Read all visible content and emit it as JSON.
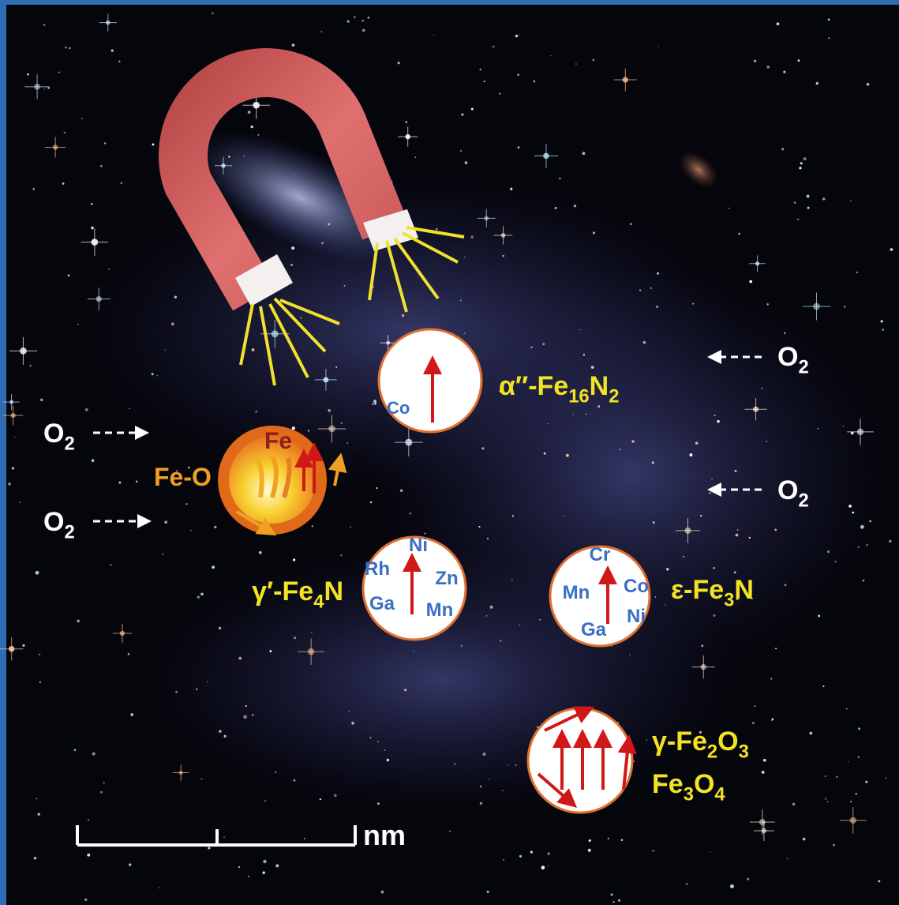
{
  "labels": [
    {
      "parts": [
        {
          "text": "O"
        },
        {
          "text": "2",
          "sub": true
        }
      ]
    },
    {
      "parts": [
        {
          "text": "O"
        },
        {
          "text": "2",
          "sub": true
        }
      ]
    },
    {
      "parts": [
        {
          "text": "O"
        },
        {
          "text": "2",
          "sub": true
        }
      ]
    },
    {
      "parts": [
        {
          "text": "O"
        },
        {
          "text": "2",
          "sub": true
        }
      ]
    },
    {
      "parts": [
        {
          "text": "Co"
        }
      ]
    },
    {
      "parts": [
        {
          "text": "α″-Fe"
        },
        {
          "text": "16",
          "sub": true
        },
        {
          "text": "N"
        },
        {
          "text": "2",
          "sub": true
        }
      ]
    },
    {
      "parts": [
        {
          "text": "Fe"
        }
      ]
    },
    {
      "parts": [
        {
          "text": "Fe-O"
        }
      ]
    },
    {
      "parts": [
        {
          "text": "Ni"
        }
      ]
    },
    {
      "parts": [
        {
          "text": "Rh"
        }
      ]
    },
    {
      "parts": [
        {
          "text": "Zn"
        }
      ]
    },
    {
      "parts": [
        {
          "text": "Ga"
        }
      ]
    },
    {
      "parts": [
        {
          "text": "Mn"
        }
      ]
    },
    {
      "parts": [
        {
          "text": "γ′-Fe"
        },
        {
          "text": "4",
          "sub": true
        },
        {
          "text": "N"
        }
      ]
    },
    {
      "parts": [
        {
          "text": "Cr"
        }
      ]
    },
    {
      "parts": [
        {
          "text": "Mn"
        }
      ]
    },
    {
      "parts": [
        {
          "text": "Co"
        }
      ]
    },
    {
      "parts": [
        {
          "text": "Ni"
        }
      ]
    },
    {
      "parts": [
        {
          "text": "Ga"
        }
      ]
    },
    {
      "parts": [
        {
          "text": "ε-Fe"
        },
        {
          "text": "3",
          "sub": true
        },
        {
          "text": "N"
        }
      ]
    },
    {
      "parts": [
        {
          "text": "γ-Fe"
        },
        {
          "text": "2",
          "sub": true
        },
        {
          "text": "O"
        },
        {
          "text": "3",
          "sub": true
        }
      ]
    },
    {
      "parts": [
        {
          "text": "Fe"
        },
        {
          "text": "3",
          "sub": true
        },
        {
          "text": "O"
        },
        {
          "text": "4",
          "sub": true
        }
      ]
    },
    {
      "parts": [
        {
          "text": "nm"
        }
      ]
    }
  ]
}
